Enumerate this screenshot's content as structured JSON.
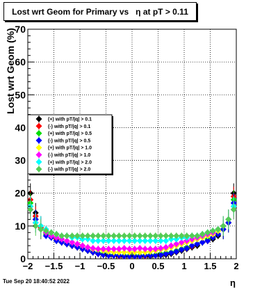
{
  "title": "Lost wrt Geom for Primary vs   η at pT > 0.11",
  "timestamp": "Tue Sep 20 18:40:52 2022",
  "chart_data": {
    "type": "scatter",
    "title": "Lost wrt Geom for Primary vs   η at pT > 0.11",
    "xlabel": "η",
    "ylabel": "Lost wrt Geom (%)",
    "xlim": [
      -2,
      2
    ],
    "ylim": [
      0,
      70
    ],
    "xticks": [
      -2,
      -1.5,
      -1,
      -0.5,
      0,
      0.5,
      1,
      1.5,
      2
    ],
    "xtick_labels": [
      "−2",
      "−1.5",
      "−1",
      "−0.5",
      "0",
      "0.5",
      "1",
      "1.5",
      "2"
    ],
    "yticks": [
      0,
      10,
      20,
      30,
      40,
      50,
      60,
      70
    ],
    "ytick_labels": [
      "0",
      "10",
      "20",
      "30",
      "40",
      "50",
      "60",
      "70"
    ],
    "grid": true,
    "legend_position": "left",
    "x": [
      -1.95,
      -1.85,
      -1.75,
      -1.65,
      -1.55,
      -1.45,
      -1.35,
      -1.25,
      -1.15,
      -1.05,
      -0.95,
      -0.85,
      -0.75,
      -0.65,
      -0.55,
      -0.45,
      -0.35,
      -0.25,
      -0.15,
      -0.05,
      0.05,
      0.15,
      0.25,
      0.35,
      0.45,
      0.55,
      0.65,
      0.75,
      0.85,
      0.95,
      1.05,
      1.15,
      1.25,
      1.35,
      1.45,
      1.55,
      1.65,
      1.75,
      1.85,
      1.95
    ],
    "series": [
      {
        "name": "(+) with pT/|q| > 0.1",
        "color": "#000000",
        "values": [
          20,
          14,
          10,
          8,
          7,
          6,
          5,
          4.5,
          4,
          3.5,
          3,
          2.5,
          2,
          1.5,
          1.2,
          1,
          1,
          0.8,
          0.8,
          0.8,
          0.8,
          0.8,
          0.8,
          0.8,
          1,
          1,
          1.2,
          1.5,
          2,
          2.5,
          3,
          3.5,
          4,
          5,
          5.5,
          6,
          7,
          9,
          12,
          20
        ]
      },
      {
        "name": "(-) with pT/|q| > 0.1",
        "color": "#ff0000",
        "values": [
          18,
          13,
          9.5,
          8,
          7,
          6,
          5,
          4.5,
          4,
          3.5,
          3,
          2.5,
          2,
          1.5,
          1.2,
          1,
          1,
          0.8,
          0.8,
          0.8,
          0.8,
          0.8,
          0.8,
          1,
          1,
          1.2,
          1.5,
          1.8,
          2.2,
          2.8,
          3.2,
          3.8,
          4.5,
          5,
          5.5,
          6.5,
          7.5,
          9,
          11,
          19
        ]
      },
      {
        "name": "(+) with pT/|q| > 0.5",
        "color": "#00dd00",
        "values": [
          17,
          12,
          9,
          7.5,
          6.5,
          5.5,
          5,
          4.5,
          4,
          3.5,
          3,
          2.5,
          2,
          1.8,
          1.5,
          1.2,
          1.2,
          1,
          1,
          1,
          1,
          1,
          1,
          1.2,
          1.2,
          1.5,
          1.8,
          2,
          2.5,
          3,
          3.5,
          4,
          4.5,
          5,
          6,
          6.5,
          7.5,
          9,
          11,
          18
        ]
      },
      {
        "name": "(-) with pT/|q| > 0.5",
        "color": "#0000ff",
        "values": [
          16,
          12,
          9,
          7,
          6.5,
          5.5,
          5,
          4.5,
          4,
          3.5,
          3,
          2.5,
          2,
          1.5,
          1.2,
          1,
          1,
          1,
          0.8,
          0.8,
          0.8,
          0.8,
          1,
          1,
          1,
          1.2,
          1.5,
          1.8,
          2.2,
          2.8,
          3.2,
          4,
          4.5,
          5,
          5.5,
          6.5,
          7.5,
          9,
          11,
          17
        ]
      },
      {
        "name": "(+) with pT/|q| > 1.0",
        "color": "#ffff00",
        "values": [
          16,
          11,
          9,
          8,
          7,
          6.5,
          6,
          5.5,
          5,
          4.5,
          4,
          3.5,
          3,
          2.8,
          2.5,
          2.2,
          2,
          2,
          2,
          2,
          2,
          2,
          2,
          2.2,
          2.5,
          2.8,
          3,
          3.5,
          4,
          4.5,
          5,
          5.5,
          6,
          6.5,
          7,
          7.5,
          8.5,
          10,
          12,
          16
        ]
      },
      {
        "name": "(-) with pT/|q| > 1.0",
        "color": "#ff00ff",
        "values": [
          15,
          11,
          9,
          8,
          7,
          6.5,
          6,
          5.5,
          5,
          4.5,
          4,
          3.5,
          3.2,
          3,
          3,
          3,
          3,
          3,
          3.2,
          3,
          3,
          3.2,
          3,
          3,
          3,
          3.2,
          3.5,
          4,
          4.5,
          5,
          5.5,
          6,
          6.5,
          7,
          7.5,
          8,
          9,
          10,
          12,
          15
        ]
      },
      {
        "name": "(+) with pT/|q| > 2.0",
        "color": "#00ffff",
        "values": [
          16,
          11,
          10,
          9,
          8,
          7.5,
          7,
          7,
          6.5,
          6.5,
          6,
          6,
          5.5,
          5.5,
          5.5,
          5.5,
          5.5,
          5.5,
          5.5,
          5.5,
          5.5,
          5.5,
          5.5,
          5.5,
          5.5,
          5.5,
          5.5,
          6,
          6,
          6.5,
          6.5,
          7,
          7,
          7.5,
          8,
          8.5,
          9,
          10,
          12,
          16
        ]
      },
      {
        "name": "(-) with pT/|q| > 2.0",
        "color": "#55cc55",
        "values": [
          15,
          10,
          9,
          8.5,
          8,
          7.5,
          7,
          7,
          7,
          7,
          7,
          7,
          7,
          7,
          7,
          7,
          7,
          7,
          7,
          7,
          7,
          7,
          7,
          7,
          7,
          7,
          7,
          7,
          7,
          7,
          7,
          7,
          7,
          7.5,
          8,
          8.5,
          9,
          10,
          12,
          15
        ]
      }
    ]
  }
}
